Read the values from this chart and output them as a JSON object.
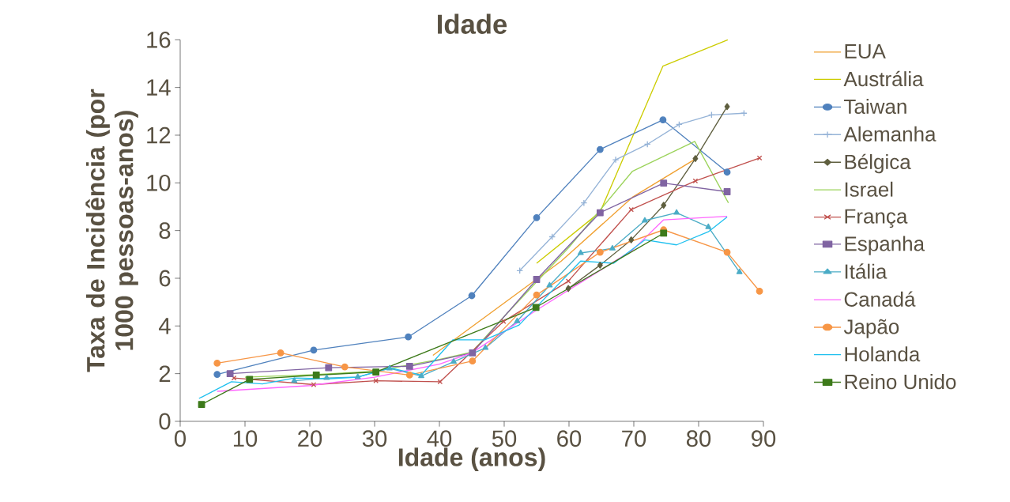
{
  "chart_data": {
    "type": "line",
    "title": "Idade",
    "xlabel": "Idade (anos)",
    "ylabel": "Taxa de Incidência (por 1000 pessoas-anos)",
    "xlim": [
      0,
      90
    ],
    "xticks": [
      0,
      10,
      20,
      30,
      40,
      50,
      60,
      70,
      80,
      90
    ],
    "ylim": [
      0,
      16
    ],
    "yticks": [
      0,
      2,
      4,
      6,
      8,
      10,
      12,
      14,
      16
    ],
    "grid": false,
    "legend": "right",
    "series": [
      {
        "name": "EUA",
        "color": "#f0a030",
        "marker": "none",
        "x": [
          39,
          58.8,
          69.8,
          79.5
        ],
        "values": [
          2.77,
          6.72,
          9.4,
          11.0
        ]
      },
      {
        "name": "Austrália",
        "color": "#cccc00",
        "marker": "none",
        "x": [
          55,
          64.8,
          74.5,
          84.5
        ],
        "values": [
          6.63,
          8.78,
          14.9,
          16.0
        ]
      },
      {
        "name": "Taiwan",
        "color": "#4f81bd",
        "marker": "circle",
        "x": [
          5.7,
          20.6,
          35.2,
          45,
          55,
          64.8,
          74.5,
          84.4
        ],
        "values": [
          1.97,
          2.99,
          3.54,
          5.27,
          8.54,
          11.4,
          12.64,
          10.45
        ]
      },
      {
        "name": "Alemanha",
        "color": "#95b3d7",
        "marker": "plus",
        "x": [
          52.4,
          57.4,
          62.3,
          67.2,
          72.1,
          77.0,
          82.0,
          87.0
        ],
        "values": [
          6.32,
          7.74,
          9.16,
          10.97,
          11.62,
          12.45,
          12.85,
          12.92
        ]
      },
      {
        "name": "Bélgica",
        "color": "#5f5f3f",
        "marker": "diamond",
        "x": [
          59.9,
          64.8,
          69.6,
          74.6,
          79.5,
          84.4
        ],
        "values": [
          5.57,
          6.55,
          7.61,
          9.06,
          11.02,
          13.2
        ]
      },
      {
        "name": "Israel",
        "color": "#9bd35a",
        "marker": "none",
        "x": [
          10,
          20,
          30,
          40,
          45,
          50,
          60,
          69.8,
          79.4,
          84.6
        ],
        "values": [
          1.85,
          1.95,
          2.1,
          2.6,
          2.9,
          4.4,
          7.3,
          10.49,
          11.74,
          9.16
        ]
      },
      {
        "name": "França",
        "color": "#c0504d",
        "marker": "cross",
        "x": [
          8.3,
          20.6,
          30.2,
          40.1,
          49.9,
          59.9,
          69.6,
          79.5,
          89.4
        ],
        "values": [
          1.82,
          1.54,
          1.7,
          1.66,
          4.19,
          5.88,
          8.88,
          10.08,
          11.04
        ]
      },
      {
        "name": "Espanha",
        "color": "#8064a2",
        "marker": "square",
        "x": [
          7.7,
          22.9,
          35.4,
          45.1,
          55,
          64.8,
          74.6,
          84.4
        ],
        "values": [
          2.0,
          2.25,
          2.31,
          2.87,
          5.95,
          8.75,
          9.99,
          9.63
        ]
      },
      {
        "name": "Itália",
        "color": "#4bacc6",
        "marker": "triangle",
        "x": [
          17.6,
          22.6,
          27.4,
          32.3,
          37.2,
          42.2,
          47.1,
          52,
          57,
          61.8,
          66.7,
          71.7,
          76.6,
          81.5,
          86.3
        ],
        "values": [
          1.7,
          1.82,
          1.86,
          2.22,
          1.9,
          2.5,
          3.08,
          4.2,
          5.7,
          7.06,
          7.25,
          8.42,
          8.75,
          8.15,
          6.26
        ]
      },
      {
        "name": "Canadá",
        "color": "#ff66ff",
        "marker": "none",
        "x": [
          5.7,
          20,
          30,
          40,
          45,
          54.9,
          69.8,
          74.6,
          84.4
        ],
        "values": [
          1.26,
          1.5,
          1.85,
          2.4,
          2.87,
          4.65,
          7.18,
          8.45,
          8.6
        ]
      },
      {
        "name": "Japão",
        "color": "#f79646",
        "marker": "circle",
        "x": [
          5.7,
          15.5,
          25.4,
          35.4,
          45.1,
          55,
          64.8,
          74.6,
          84.4,
          89.4
        ],
        "values": [
          2.44,
          2.87,
          2.28,
          1.94,
          2.53,
          5.3,
          7.09,
          8.03,
          7.09,
          5.46
        ]
      },
      {
        "name": "Holanda",
        "color": "#1fc0ef",
        "marker": "none",
        "x": [
          2.9,
          7.9,
          12.7,
          17.7,
          22.6,
          27.4,
          32.3,
          37.2,
          42.1,
          47,
          52.3,
          61.8,
          66.9,
          71.7,
          76.6,
          81.5,
          84.4
        ],
        "values": [
          0.96,
          1.66,
          1.57,
          1.82,
          1.78,
          1.85,
          2.25,
          1.94,
          3.42,
          3.42,
          4.04,
          6.72,
          6.63,
          7.61,
          7.4,
          7.95,
          8.57
        ]
      },
      {
        "name": "Reino Unido",
        "color": "#3d7a1a",
        "marker": "square",
        "x": [
          3.3,
          10.7,
          21,
          30.2,
          54.9,
          74.6
        ],
        "values": [
          0.71,
          1.76,
          1.94,
          2.07,
          4.78,
          7.89
        ]
      }
    ]
  }
}
